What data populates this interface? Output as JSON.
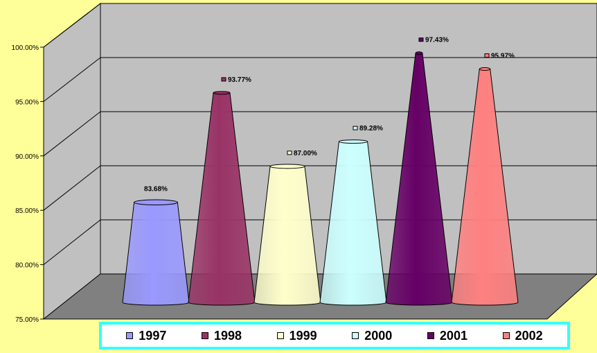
{
  "chart_data": {
    "type": "bar",
    "shape": "cone",
    "title": "",
    "xlabel": "",
    "ylabel": "",
    "ylim": [
      75,
      100
    ],
    "y_ticks": [
      "75.00%",
      "80.00%",
      "85.00%",
      "90.00%",
      "95.00%",
      "100.00%"
    ],
    "categories": [
      "1997",
      "1998",
      "1999",
      "2000",
      "2001",
      "2002"
    ],
    "values": [
      83.68,
      93.77,
      87.0,
      89.28,
      97.43,
      95.97
    ],
    "data_labels": [
      "83.68%",
      "93.77%",
      "87.00%",
      "89.28%",
      "97.43%",
      "95.97%"
    ],
    "colors": [
      "#9999ff",
      "#993366",
      "#ffffcc",
      "#ccffff",
      "#660066",
      "#ff8080"
    ],
    "grid": true,
    "legend_position": "bottom",
    "colors_theme": {
      "background": "#ffff99",
      "wall": "#c0c0c0",
      "floor": "#808080",
      "legend_border": "#33ffff"
    }
  }
}
